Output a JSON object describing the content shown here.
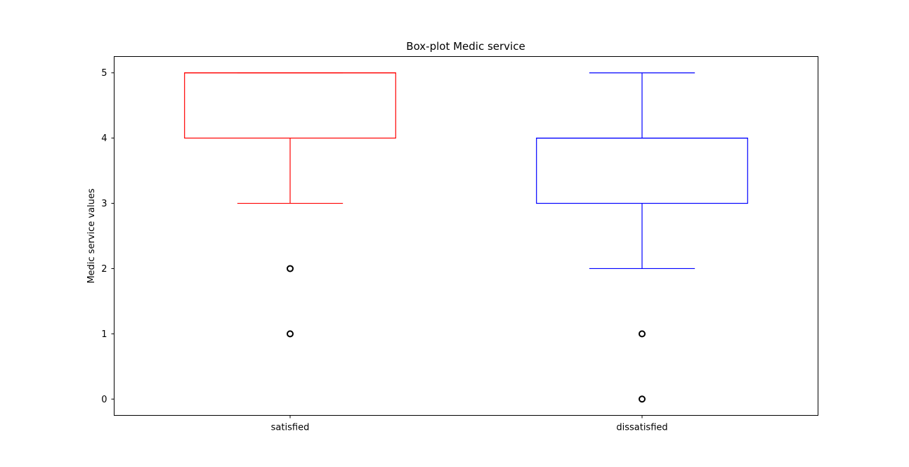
{
  "chart_data": {
    "type": "box",
    "title": "Box-plot Medic service",
    "xlabel": "",
    "ylabel": "Medic service values",
    "ylim": [
      -0.25,
      5.25
    ],
    "yticks": [
      0,
      1,
      2,
      3,
      4,
      5
    ],
    "grid": false,
    "categories": [
      "satisfied",
      "dissatisfied"
    ],
    "boxes": [
      {
        "category": "satisfied",
        "color": "#ff0000",
        "whisker_low": 3,
        "q1": 4,
        "median": 5,
        "q3": 5,
        "whisker_high": 5,
        "outliers": [
          2,
          1
        ]
      },
      {
        "category": "dissatisfied",
        "color": "#0000ff",
        "whisker_low": 2,
        "q1": 3,
        "median": 4,
        "q3": 4,
        "whisker_high": 5,
        "outliers": [
          1,
          0
        ]
      }
    ]
  }
}
